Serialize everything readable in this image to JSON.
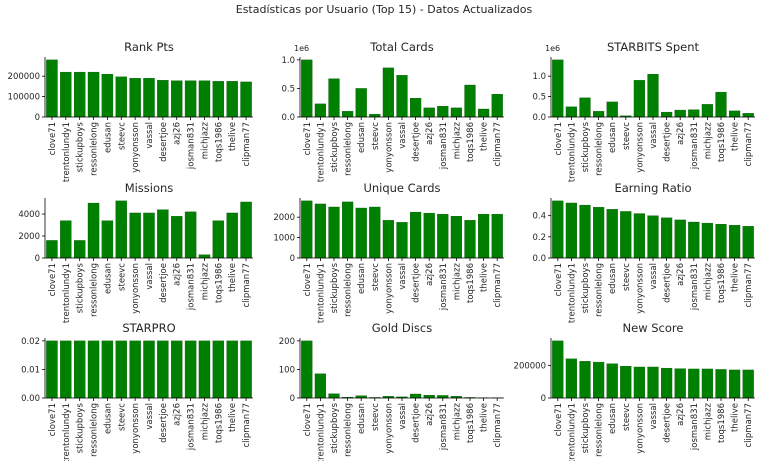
{
  "figure": {
    "title": "Estadísticas por Usuario (Top 15) - Datos Actualizados"
  },
  "colors": {
    "bar": "#008000",
    "bar_edge": "#004d00",
    "axis": "#000000",
    "text": "#262626"
  },
  "chart_data": [
    {
      "type": "bar",
      "title": "Rank Pts",
      "categories": [
        "clove71",
        "trentonlundy1",
        "stickupboys",
        "ressonlelong",
        "edusan",
        "steevc",
        "yonyonsson",
        "vassal",
        "desertjoe",
        "azj26",
        "josman831",
        "michjazz",
        "toqs1986",
        "thelive",
        "clipman77"
      ],
      "values": [
        280000,
        220000,
        220000,
        220000,
        210000,
        197000,
        190000,
        190000,
        180000,
        178000,
        178000,
        178000,
        175000,
        175000,
        172000
      ],
      "ylim": [
        0,
        294000
      ],
      "yticks": [
        0,
        100000,
        200000
      ],
      "ytick_labels": [
        "0",
        "100000",
        "200000"
      ],
      "scale_label": ""
    },
    {
      "type": "bar",
      "title": "Total Cards",
      "categories": [
        "clove71",
        "trentonlundy1",
        "stickupboys",
        "ressonlelong",
        "edusan",
        "steevc",
        "yonyonsson",
        "vassal",
        "desertjoe",
        "azj26",
        "josman831",
        "michjazz",
        "toqs1986",
        "thelive",
        "clipman77"
      ],
      "values": [
        1000000,
        230000,
        670000,
        100000,
        500000,
        50000,
        860000,
        730000,
        330000,
        160000,
        190000,
        160000,
        560000,
        140000,
        400000
      ],
      "ylim": [
        0,
        1050000
      ],
      "yticks": [
        0,
        500000,
        1000000
      ],
      "ytick_labels": [
        "0.0",
        "0.5",
        "1.0"
      ],
      "scale_label": "1e6"
    },
    {
      "type": "bar",
      "title": "STARBITS Spent",
      "categories": [
        "clove71",
        "trentonlundy1",
        "stickupboys",
        "ressonlelong",
        "edusan",
        "steevc",
        "yonyonsson",
        "vassal",
        "desertjoe",
        "azj26",
        "josman831",
        "michjazz",
        "toqs1986",
        "thelive",
        "clipman77"
      ],
      "values": [
        1400000,
        250000,
        470000,
        140000,
        370000,
        30000,
        900000,
        1050000,
        120000,
        170000,
        180000,
        310000,
        610000,
        150000,
        90000
      ],
      "ylim": [
        0,
        1470000
      ],
      "yticks": [
        0,
        500000,
        1000000
      ],
      "ytick_labels": [
        "0.0",
        "0.5",
        "1.0"
      ],
      "scale_label": "1e6"
    },
    {
      "type": "bar",
      "title": "Missions",
      "categories": [
        "clove71",
        "trentonlundy1",
        "stickupboys",
        "ressonlelong",
        "edusan",
        "steevc",
        "yonyonsson",
        "vassal",
        "desertjoe",
        "azj26",
        "josman831",
        "michjazz",
        "toqs1986",
        "thelive",
        "clipman77"
      ],
      "values": [
        1600,
        3400,
        1600,
        5000,
        3400,
        5200,
        4100,
        4100,
        4400,
        3800,
        4200,
        300,
        3400,
        4100,
        5100
      ],
      "ylim": [
        0,
        5460
      ],
      "yticks": [
        0,
        2000,
        4000
      ],
      "ytick_labels": [
        "0",
        "2000",
        "4000"
      ],
      "scale_label": ""
    },
    {
      "type": "bar",
      "title": "Unique Cards",
      "categories": [
        "clove71",
        "trentonlundy1",
        "stickupboys",
        "ressonlelong",
        "edusan",
        "steevc",
        "yonyonsson",
        "vassal",
        "desertjoe",
        "azj26",
        "josman831",
        "michjazz",
        "toqs1986",
        "thelive",
        "clipman77"
      ],
      "values": [
        2800,
        2650,
        2500,
        2750,
        2450,
        2500,
        1850,
        1750,
        2250,
        2200,
        2150,
        2050,
        1850,
        2150,
        2150
      ],
      "ylim": [
        0,
        2940
      ],
      "yticks": [
        0,
        1000,
        2000
      ],
      "ytick_labels": [
        "0",
        "1000",
        "2000"
      ],
      "scale_label": ""
    },
    {
      "type": "bar",
      "title": "Earning Ratio",
      "categories": [
        "clove71",
        "trentonlundy1",
        "stickupboys",
        "ressonlelong",
        "edusan",
        "steevc",
        "yonyonsson",
        "vassal",
        "desertjoe",
        "azj26",
        "josman831",
        "michjazz",
        "toqs1986",
        "thelive",
        "clipman77"
      ],
      "values": [
        0.54,
        0.52,
        0.5,
        0.48,
        0.46,
        0.44,
        0.42,
        0.4,
        0.38,
        0.36,
        0.34,
        0.33,
        0.32,
        0.31,
        0.3
      ],
      "ylim": [
        0,
        0.567
      ],
      "yticks": [
        0,
        0.2,
        0.4
      ],
      "ytick_labels": [
        "0.0",
        "0.2",
        "0.4"
      ],
      "scale_label": ""
    },
    {
      "type": "bar",
      "title": "STARPRO",
      "categories": [
        "clove71",
        "trentonlundy1",
        "stickupboys",
        "ressonlelong",
        "edusan",
        "steevc",
        "yonyonsson",
        "vassal",
        "desertjoe",
        "azj26",
        "josman831",
        "michjazz",
        "toqs1986",
        "thelive",
        "clipman77"
      ],
      "values": [
        0.02,
        0.02,
        0.02,
        0.02,
        0.02,
        0.02,
        0.02,
        0.02,
        0.02,
        0.02,
        0.02,
        0.02,
        0.02,
        0.02,
        0.02
      ],
      "ylim": [
        0,
        0.021
      ],
      "yticks": [
        0,
        0.01,
        0.02
      ],
      "ytick_labels": [
        "0.00",
        "0.01",
        "0.02"
      ],
      "scale_label": ""
    },
    {
      "type": "bar",
      "title": "Gold Discs",
      "categories": [
        "clove71",
        "trentonlundy1",
        "stickupboys",
        "ressonlelong",
        "edusan",
        "steevc",
        "yonyonsson",
        "vassal",
        "desertjoe",
        "azj26",
        "josman831",
        "michjazz",
        "toqs1986",
        "thelive",
        "clipman77"
      ],
      "values": [
        200,
        85,
        15,
        3,
        8,
        2,
        6,
        4,
        14,
        10,
        9,
        6,
        2,
        1,
        1
      ],
      "ylim": [
        0,
        210
      ],
      "yticks": [
        0,
        100,
        200
      ],
      "ytick_labels": [
        "0",
        "100",
        "200"
      ],
      "scale_label": ""
    },
    {
      "type": "bar",
      "title": "New Score",
      "categories": [
        "clove71",
        "trentonlundy1",
        "stickupboys",
        "ressonlelong",
        "edusan",
        "steevc",
        "yonyonsson",
        "vassal",
        "desertjoe",
        "azj26",
        "josman831",
        "michjazz",
        "toqs1986",
        "thelive",
        "clipman77"
      ],
      "values": [
        350000,
        240000,
        225000,
        220000,
        210000,
        195000,
        190000,
        190000,
        183000,
        180000,
        178000,
        178000,
        175000,
        172000,
        172000
      ],
      "ylim": [
        0,
        367500
      ],
      "yticks": [
        0,
        200000
      ],
      "ytick_labels": [
        "0",
        "200000"
      ],
      "scale_label": ""
    }
  ]
}
